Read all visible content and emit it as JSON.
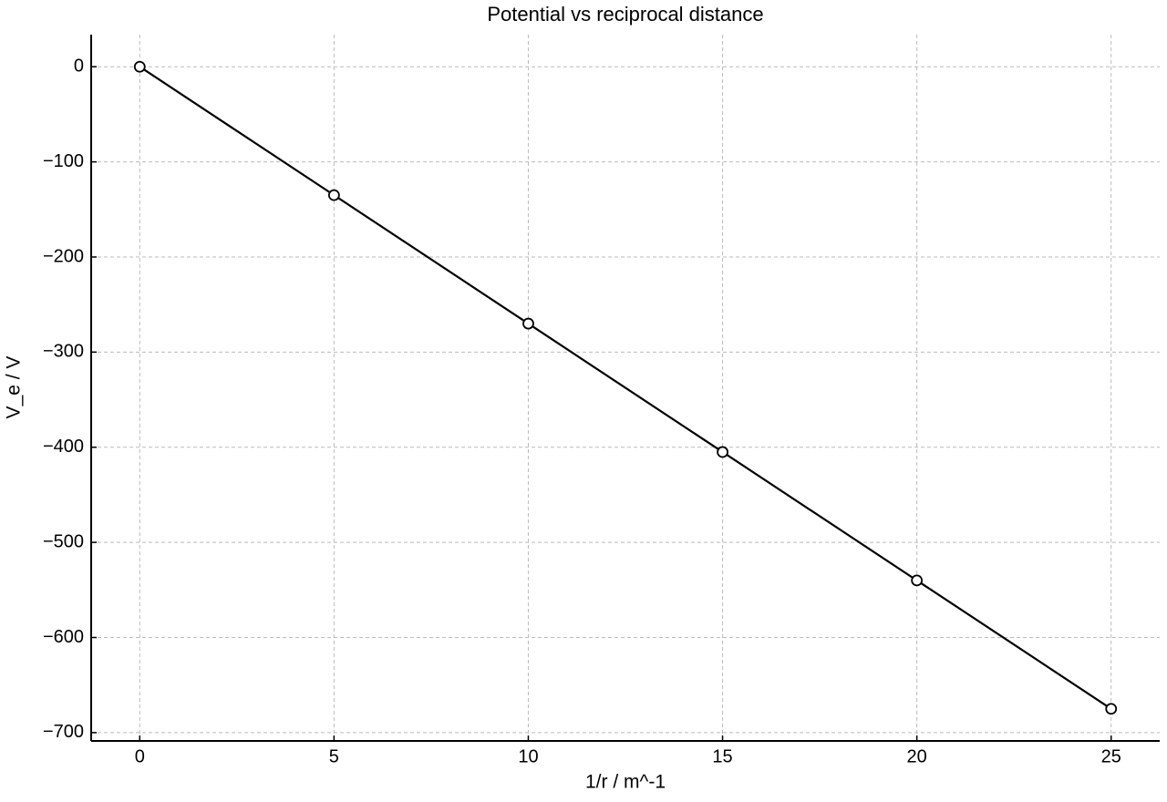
{
  "chart_data": {
    "type": "line",
    "title": "Potential vs reciprocal distance",
    "x_label": "1/r / m^-1",
    "y_label": "V_e / V",
    "x": [
      0,
      5,
      10,
      15,
      20,
      25
    ],
    "series": [
      {
        "color": "#000000",
        "values": [
          0,
          -135,
          -270,
          -405,
          -540,
          -675
        ]
      }
    ],
    "xlim": [
      -1.25,
      26.25
    ],
    "ylim": [
      -708.75,
      33.75
    ],
    "xticks": [
      0,
      5,
      10,
      15,
      20,
      25
    ],
    "yticks": [
      {
        "value": -700,
        "label": "−700"
      },
      {
        "value": -600,
        "label": "−600"
      },
      {
        "value": -500,
        "label": "−500"
      },
      {
        "value": -400,
        "label": "−400"
      },
      {
        "value": -300,
        "label": "−300"
      },
      {
        "value": -200,
        "label": "−200"
      },
      {
        "value": -100,
        "label": "−100"
      },
      0
    ],
    "grid": true
  }
}
